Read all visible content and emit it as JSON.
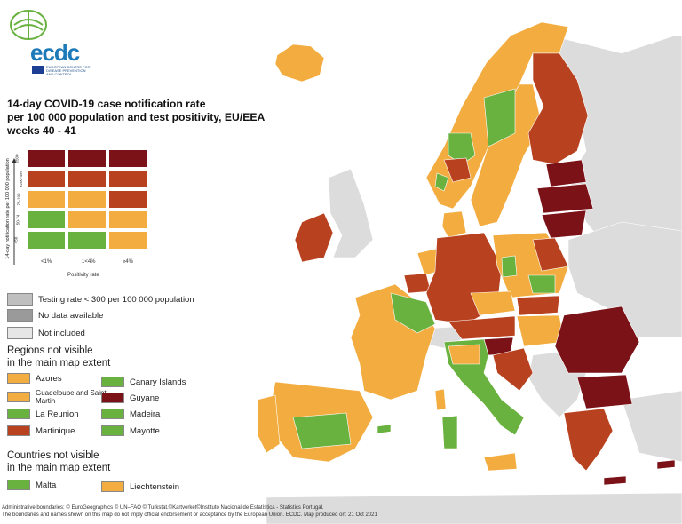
{
  "logo": {
    "text": "ecdc",
    "subtitle": "EUROPEAN CENTRE FOR DISEASE PREVENTION AND CONTROL"
  },
  "title": {
    "line1": "14-day COVID-19 case notification rate",
    "line2": "per 100 000 population and test positivity, EU/EEA",
    "line3": "weeks 40 - 41"
  },
  "matrix": {
    "y_axis_label": "14-day notification rate per 100 000 population",
    "x_axis_label": "Positivity rate",
    "row_labels": [
      "≥500",
      "≥200-499",
      "75-199",
      "50-74",
      "<50"
    ],
    "col_labels": [
      "<1%",
      "1<4%",
      "≥4%"
    ],
    "cell_colors": [
      [
        "#7b1218",
        "#7b1218",
        "#7b1218"
      ],
      [
        "#b8411f",
        "#b8411f",
        "#b8411f"
      ],
      [
        "#f3ac3f",
        "#f3ac3f",
        "#b8411f"
      ],
      [
        "#6ab23f",
        "#f3ac3f",
        "#f3ac3f"
      ],
      [
        "#6ab23f",
        "#6ab23f",
        "#f3ac3f"
      ]
    ]
  },
  "legend": {
    "testing_rate": "Testing rate < 300 per 100 000 population",
    "no_data": "No data available",
    "not_included": "Not included",
    "regions_title_1": "Regions not visible",
    "regions_title_2": "in the main map extent",
    "regions": [
      {
        "name": "Azores",
        "color": "#f3ac3f"
      },
      {
        "name": "Guadeloupe and Saint Martin",
        "color": "#f3ac3f"
      },
      {
        "name": "La Reunion",
        "color": "#6ab23f"
      },
      {
        "name": "Martinique",
        "color": "#b8411f"
      },
      {
        "name": "Canary Islands",
        "color": "#6ab23f"
      },
      {
        "name": "Guyane",
        "color": "#7b1218"
      },
      {
        "name": "Madeira",
        "color": "#6ab23f"
      },
      {
        "name": "Mayotte",
        "color": "#6ab23f"
      }
    ],
    "countries_title_1": "Countries not visible",
    "countries_title_2": "in the main map extent",
    "countries": [
      {
        "name": "Malta",
        "color": "#6ab23f"
      },
      {
        "name": "Liechtenstein",
        "color": "#f3ac3f"
      }
    ]
  },
  "footer": {
    "line1": "Administrative boundaries: © EuroGeographics © UN–FAO © Turkstat.©Kartverket©Instituto Nacional de Estatística - Statistics Portugal.",
    "line2": "The boundaries and names shown on this map do not imply official endorsement or acceptance by the European Union. ECDC. Map produced on: 21 Oct 2021"
  },
  "colors": {
    "dark_red": "#7b1218",
    "red": "#b8411f",
    "orange": "#f3ac3f",
    "green": "#6ab23f",
    "not_included": "#dcdcdc",
    "no_data": "#9a9a9a",
    "testing_rate": "#bfbfbf"
  }
}
